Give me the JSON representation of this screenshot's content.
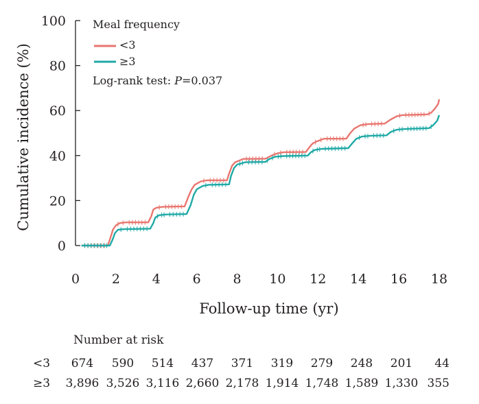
{
  "chart_data": {
    "type": "line",
    "title": "",
    "xlabel": "Follow-up time (yr)",
    "ylabel": "Cumulative incidence (%)",
    "xlim": [
      0,
      18
    ],
    "ylim": [
      0,
      100
    ],
    "x_ticks": [
      0,
      2,
      4,
      6,
      8,
      10,
      12,
      14,
      16,
      18
    ],
    "y_ticks": [
      0,
      20,
      40,
      60,
      80,
      100
    ],
    "legend": {
      "title": "Meal frequency",
      "placement": "top-left",
      "entries": [
        "<3",
        "≥3"
      ]
    },
    "annotation": {
      "prefix": "Log-rank test: ",
      "p_symbol": "P",
      "equals": "=",
      "value": "0.037"
    },
    "series": [
      {
        "name": "<3",
        "color": "#e8766f",
        "points": [
          [
            0.3,
            0
          ],
          [
            1.6,
            0
          ],
          [
            1.75,
            4
          ],
          [
            1.85,
            7
          ],
          [
            2.0,
            9
          ],
          [
            2.2,
            10
          ],
          [
            2.5,
            10.3
          ],
          [
            3.6,
            10.3
          ],
          [
            3.75,
            13
          ],
          [
            3.85,
            16
          ],
          [
            4.0,
            16.8
          ],
          [
            4.3,
            17.2
          ],
          [
            5.4,
            17.4
          ],
          [
            5.6,
            22
          ],
          [
            5.75,
            25
          ],
          [
            5.9,
            27
          ],
          [
            6.2,
            28.5
          ],
          [
            6.5,
            29
          ],
          [
            7.5,
            29
          ],
          [
            7.6,
            32
          ],
          [
            7.75,
            35.5
          ],
          [
            7.9,
            37
          ],
          [
            8.3,
            38.5
          ],
          [
            9.4,
            38.6
          ],
          [
            9.7,
            40
          ],
          [
            10.0,
            41
          ],
          [
            10.3,
            41.5
          ],
          [
            11.4,
            41.6
          ],
          [
            11.6,
            44
          ],
          [
            11.75,
            45.5
          ],
          [
            12.0,
            46.5
          ],
          [
            12.3,
            47.5
          ],
          [
            13.4,
            47.5
          ],
          [
            13.6,
            50
          ],
          [
            13.8,
            52
          ],
          [
            14.1,
            53.5
          ],
          [
            14.5,
            54
          ],
          [
            15.3,
            54.2
          ],
          [
            15.6,
            56
          ],
          [
            15.9,
            57.5
          ],
          [
            16.2,
            58
          ],
          [
            17.4,
            58.3
          ],
          [
            17.6,
            59
          ],
          [
            17.8,
            61
          ],
          [
            17.95,
            63
          ],
          [
            18.0,
            65
          ]
        ]
      },
      {
        "name": "≥3",
        "color": "#1fa9a6",
        "points": [
          [
            0.3,
            0
          ],
          [
            1.7,
            0
          ],
          [
            1.85,
            3
          ],
          [
            1.95,
            5.5
          ],
          [
            2.1,
            7
          ],
          [
            2.4,
            7.3
          ],
          [
            3.7,
            7.5
          ],
          [
            3.85,
            10
          ],
          [
            3.95,
            12.5
          ],
          [
            4.15,
            13.5
          ],
          [
            4.5,
            13.8
          ],
          [
            5.5,
            14
          ],
          [
            5.7,
            18
          ],
          [
            5.85,
            22.5
          ],
          [
            6.0,
            25
          ],
          [
            6.3,
            26.5
          ],
          [
            6.6,
            27
          ],
          [
            7.6,
            27.2
          ],
          [
            7.7,
            31
          ],
          [
            7.85,
            34.5
          ],
          [
            8.0,
            36
          ],
          [
            8.4,
            37
          ],
          [
            9.4,
            37.2
          ],
          [
            9.6,
            38.5
          ],
          [
            9.9,
            39.5
          ],
          [
            10.3,
            39.8
          ],
          [
            11.5,
            40
          ],
          [
            11.65,
            41.5
          ],
          [
            11.85,
            42.5
          ],
          [
            12.2,
            43
          ],
          [
            13.5,
            43.3
          ],
          [
            13.7,
            45.5
          ],
          [
            13.9,
            47.5
          ],
          [
            14.2,
            48.5
          ],
          [
            14.6,
            48.8
          ],
          [
            15.4,
            49
          ],
          [
            15.6,
            50.5
          ],
          [
            15.9,
            51.5
          ],
          [
            16.3,
            51.8
          ],
          [
            17.5,
            52.2
          ],
          [
            17.7,
            53.5
          ],
          [
            17.9,
            55.5
          ],
          [
            18.0,
            58
          ]
        ]
      }
    ],
    "risk_table": {
      "title": "Number at risk",
      "rows": [
        {
          "label": "<3",
          "values": [
            "674",
            "590",
            "514",
            "437",
            "371",
            "319",
            "279",
            "248",
            "201",
            "44"
          ]
        },
        {
          "label": "≥3",
          "values": [
            "3,896",
            "3,526",
            "3,116",
            "2,660",
            "2,178",
            "1,914",
            "1,748",
            "1,589",
            "1,330",
            "355"
          ]
        }
      ]
    }
  }
}
